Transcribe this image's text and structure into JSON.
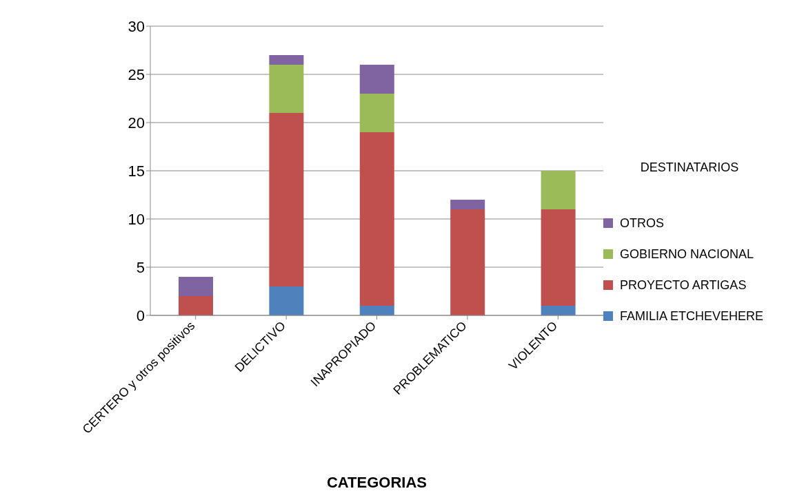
{
  "chart_data": {
    "type": "bar",
    "stacked": true,
    "xlabel": "CATEGORIAS",
    "legend_title": "DESTINATARIOS",
    "legend": "right",
    "grid": "y",
    "categories": [
      "CERTERO y otros positivos",
      "DELICTIVO",
      "INAPROPIADO",
      "PROBLEMATICO",
      "VIOLENTO"
    ],
    "ylim": [
      0,
      30
    ],
    "yticks": [
      0,
      5,
      10,
      15,
      20,
      25,
      30
    ],
    "series": [
      {
        "name": "FAMILIA ETCHEVEHERE",
        "color": "#4f81bd",
        "values": [
          0,
          3,
          1,
          0,
          1
        ]
      },
      {
        "name": "PROYECTO ARTIGAS",
        "color": "#c0504d",
        "values": [
          2,
          18,
          18,
          11,
          10
        ]
      },
      {
        "name": "GOBIERNO NACIONAL",
        "color": "#9bbb59",
        "values": [
          0,
          5,
          4,
          0,
          4
        ]
      },
      {
        "name": "OTROS",
        "color": "#8064a2",
        "values": [
          2,
          1,
          3,
          1,
          0
        ]
      }
    ]
  }
}
